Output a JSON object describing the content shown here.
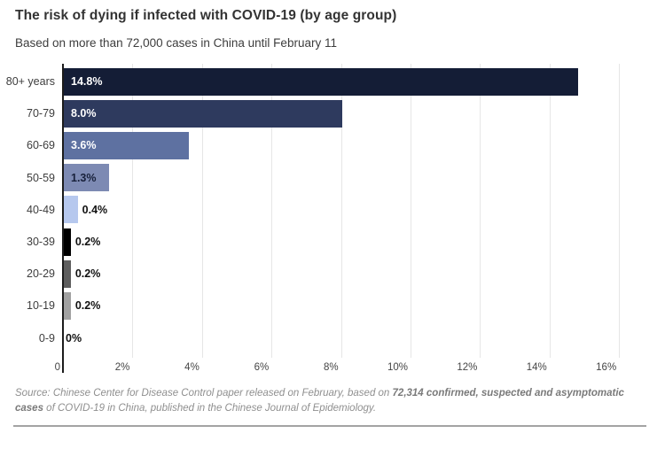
{
  "header": {
    "title": "The risk of dying if infected with COVID-19 (by age group)",
    "subtitle": "Based on more than 72,000 cases in China until February 11"
  },
  "chart_data": {
    "type": "bar",
    "orientation": "horizontal",
    "title": "The risk of dying if infected with COVID-19 (by age group)",
    "subtitle": "Based on more than 72,000 cases in China until February 11",
    "unit": "%",
    "xlim": [
      0,
      16
    ],
    "grid": "vertical",
    "legend": "none",
    "x_ticks": [
      {
        "value": 0,
        "label": "0"
      },
      {
        "value": 2,
        "label": "2%"
      },
      {
        "value": 4,
        "label": "4%"
      },
      {
        "value": 6,
        "label": "6%"
      },
      {
        "value": 8,
        "label": "8%"
      },
      {
        "value": 10,
        "label": "10%"
      },
      {
        "value": 12,
        "label": "12%"
      },
      {
        "value": 14,
        "label": "14%"
      },
      {
        "value": 16,
        "label": "16%"
      }
    ],
    "categories": [
      "80+ years",
      "70-79",
      "60-69",
      "50-59",
      "40-49",
      "30-39",
      "20-29",
      "10-19",
      "0-9"
    ],
    "values": [
      14.8,
      8.0,
      3.6,
      1.3,
      0.4,
      0.2,
      0.2,
      0.2,
      0
    ],
    "bars": [
      {
        "category": "80+ years",
        "value": 14.8,
        "label": "14.8%",
        "color": "#141d36",
        "label_position": "inside",
        "label_color": "#ffffff"
      },
      {
        "category": "70-79",
        "value": 8.0,
        "label": "8.0%",
        "color": "#2e3a5e",
        "label_position": "inside",
        "label_color": "#ffffff"
      },
      {
        "category": "60-69",
        "value": 3.6,
        "label": "3.6%",
        "color": "#5e71a1",
        "label_position": "inside",
        "label_color": "#ffffff"
      },
      {
        "category": "50-59",
        "value": 1.3,
        "label": "1.3%",
        "color": "#7d8ab3",
        "label_position": "inside",
        "label_color": "#18213b"
      },
      {
        "category": "40-49",
        "value": 0.4,
        "label": "0.4%",
        "color": "#b6c8ee",
        "label_position": "outside",
        "label_color": "#111111"
      },
      {
        "category": "30-39",
        "value": 0.2,
        "label": "0.2%",
        "color": "#000000",
        "label_position": "outside",
        "label_color": "#111111"
      },
      {
        "category": "20-29",
        "value": 0.2,
        "label": "0.2%",
        "color": "#5e5e5e",
        "label_position": "outside",
        "label_color": "#111111"
      },
      {
        "category": "10-19",
        "value": 0.2,
        "label": "0.2%",
        "color": "#a1a1a1",
        "label_position": "outside",
        "label_color": "#111111"
      },
      {
        "category": "0-9",
        "value": 0,
        "label": "0%",
        "color": "#ffffff",
        "label_position": "outside",
        "label_color": "#111111"
      }
    ]
  },
  "footer": {
    "source_prefix": "Source: Chinese Center for Disease Control paper released on February, based on ",
    "source_bold": "72,314 confirmed, suspected and asymptomatic cases",
    "source_suffix": " of COVID-19 in China, published in the Chinese Journal of Epidemiology."
  }
}
